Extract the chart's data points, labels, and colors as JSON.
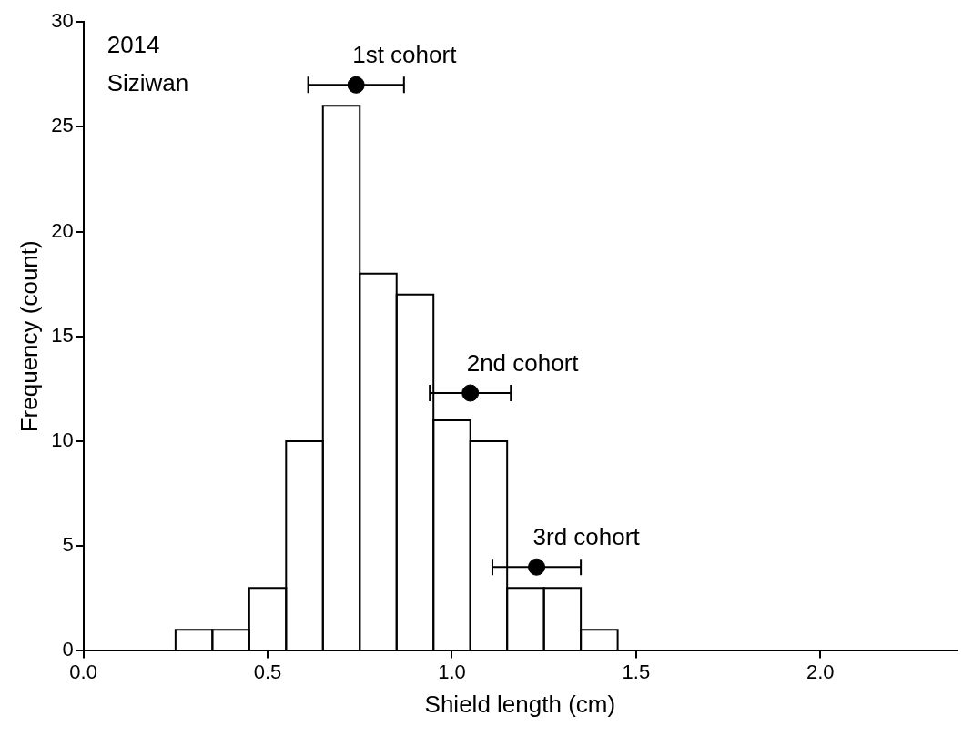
{
  "chart_data": {
    "type": "histogram",
    "xlabel": "Shield length (cm)",
    "ylabel": "Frequency (count)",
    "bins": [
      0.25,
      0.35,
      0.45,
      0.55,
      0.65,
      0.75,
      0.85,
      0.95,
      1.05,
      1.15,
      1.25,
      1.35,
      1.45
    ],
    "values": [
      1,
      1,
      3,
      10,
      26,
      18,
      17,
      11,
      10,
      3,
      3,
      1
    ],
    "color": "#ffffff",
    "series": [
      {
        "type": "scatter",
        "color": "#000000",
        "x": [
          0.74,
          1.05,
          1.23
        ],
        "values": [
          27,
          12.3,
          4
        ],
        "xerrors": [
          0.13,
          0.11,
          0.12
        ]
      }
    ],
    "xlim": [
      0,
      2.37
    ],
    "xticks": [
      {
        "value": 0,
        "label": "0.0"
      },
      {
        "value": 0.5,
        "label": "0.5"
      },
      {
        "value": 1,
        "label": "1.0"
      },
      {
        "value": 1.5,
        "label": "1.5"
      },
      {
        "value": 2,
        "label": "2.0"
      }
    ],
    "ylim": [
      0,
      30
    ],
    "yticks": [
      0,
      5,
      10,
      15,
      20,
      25,
      30
    ],
    "grid": false,
    "legend": false,
    "marker": "circle",
    "annotations": [
      "2014",
      "Siziwan",
      {
        "text": "1st cohort",
        "x": 0.74,
        "y": 27
      },
      {
        "text": "2nd cohort",
        "x": 1.05,
        "y": 12.3
      },
      {
        "text": "3rd cohort",
        "x": 1.23,
        "y": 4
      }
    ]
  }
}
